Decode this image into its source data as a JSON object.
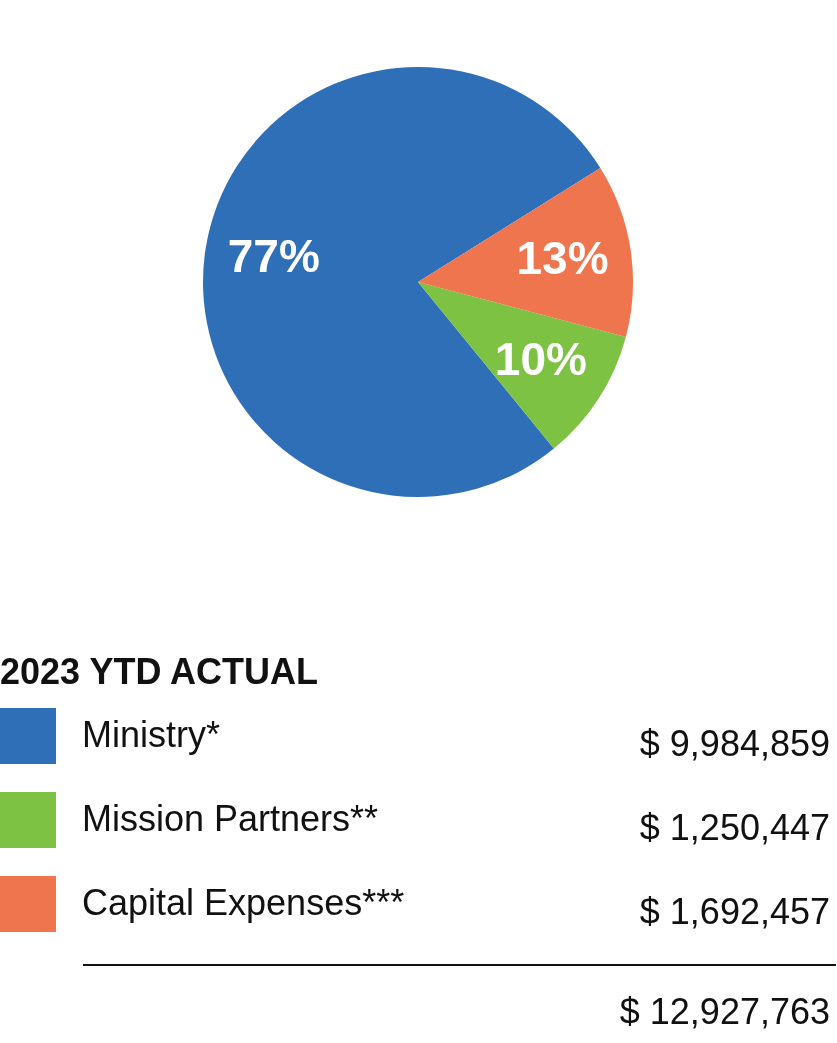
{
  "chart_data": {
    "type": "pie",
    "legend_title": "2023 YTD ACTUAL",
    "categories": [
      "Ministry*",
      "Mission Partners**",
      "Capital Expenses***"
    ],
    "values": [
      77,
      10,
      13
    ],
    "colors": [
      "#2e6fb7",
      "#7dc243",
      "#ee754d"
    ],
    "value_labels": [
      "77%",
      "10%",
      "13%"
    ],
    "annotations": [
      "$ 9,984,859",
      "$ 1,250,447",
      "$ 1,692,457",
      "$ 12,927,763"
    ],
    "legend": "bottom"
  }
}
